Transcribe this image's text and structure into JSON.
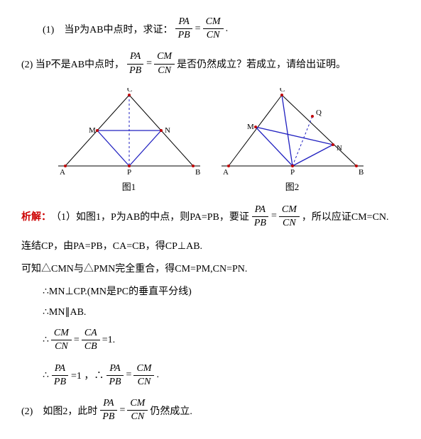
{
  "q1_prefix": "(1)　当P为AB中点时，求证：",
  "q2_prefix": "(2) 当P不是AB中点时，",
  "q2_suffix": " 是否仍然成立？若成立，请给出证明。",
  "fig1_cap": "图1",
  "fig2_cap": "图2",
  "ans_label": "析解：",
  "ans1_a": "（1）如图1，P为AB的中点，则PA=PB，要证",
  "ans1_b": "，所以应证CM=CN.",
  "l2": "连结CP，由PA=PB，CA=CB，得CP⊥AB.",
  "l3": "可知△CMN与△PMN完全重合，得CM=PM,CN=PN.",
  "l4": "∴MN⊥CP.(MN是PC的垂直平分线)",
  "l5": "∴MN∥AB.",
  "l6_eq": " =1.",
  "l7_a": " =1 ，∴",
  "ans2": "(2)　如图2，此时",
  "ans2_suf": " 仍然成立.",
  "frac": {
    "PA": "PA",
    "PB": "PB",
    "CM": "CM",
    "CN": "CN",
    "CA": "CA",
    "CB": "CB"
  },
  "period": "  .",
  "eq": " = ",
  "colors": {
    "stroke": "#2020c0",
    "point": "#c00000",
    "axis": "#000"
  },
  "fig1": {
    "A": [
      10,
      110
    ],
    "B": [
      190,
      110
    ],
    "C": [
      100,
      10
    ],
    "P": [
      100,
      110
    ],
    "M": [
      55,
      60
    ],
    "N": [
      145,
      60
    ]
  },
  "fig2": {
    "A": [
      10,
      110
    ],
    "B": [
      190,
      110
    ],
    "C": [
      85,
      10
    ],
    "P": [
      100,
      110
    ],
    "M": [
      48,
      55
    ],
    "N": [
      157,
      80
    ],
    "Q": [
      128,
      40
    ]
  }
}
